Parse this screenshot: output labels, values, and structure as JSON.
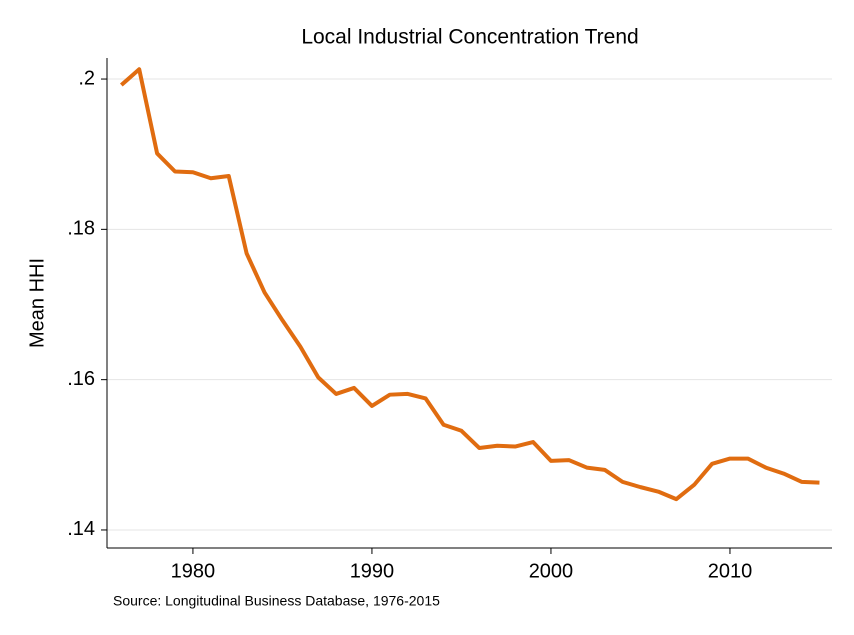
{
  "chart_data": {
    "type": "line",
    "title": "Local Industrial Concentration Trend",
    "y_label": "Mean HHI",
    "annotation": "Source: Longitudinal Business Database, 1976-2015",
    "x": [
      1976,
      1977,
      1978,
      1979,
      1980,
      1981,
      1982,
      1983,
      1984,
      1985,
      1986,
      1987,
      1988,
      1989,
      1990,
      1991,
      1992,
      1993,
      1994,
      1995,
      1996,
      1997,
      1998,
      1999,
      2000,
      2001,
      2002,
      2003,
      2004,
      2005,
      2006,
      2007,
      2008,
      2009,
      2010,
      2011,
      2012,
      2013,
      2014,
      2015
    ],
    "series": [
      {
        "name": "Mean HHI",
        "color": "#e06c10",
        "values": [
          0.1992,
          0.2013,
          0.1901,
          0.1877,
          0.1876,
          0.1868,
          0.1871,
          0.1768,
          0.1716,
          0.1679,
          0.1644,
          0.1603,
          0.1581,
          0.1589,
          0.1565,
          0.158,
          0.1581,
          0.1575,
          0.154,
          0.1532,
          0.1509,
          0.1512,
          0.1511,
          0.1517,
          0.1492,
          0.1493,
          0.1483,
          0.148,
          0.1464,
          0.1457,
          0.1451,
          0.1441,
          0.146,
          0.1488,
          0.1495,
          0.1495,
          0.1483,
          0.1475,
          0.1464,
          0.1463
        ]
      }
    ],
    "xlim": [
      1975.2,
      2015.7
    ],
    "xticks": [
      1980,
      1990,
      2000,
      2010
    ],
    "ylim": [
      0.1376,
      0.2028
    ],
    "yticks": [
      {
        "value": 0.14,
        "label": ".14"
      },
      {
        "value": 0.16,
        "label": ".16"
      },
      {
        "value": 0.18,
        "label": ".18"
      },
      {
        "value": 0.2,
        "label": ".2"
      }
    ],
    "grid": true
  }
}
